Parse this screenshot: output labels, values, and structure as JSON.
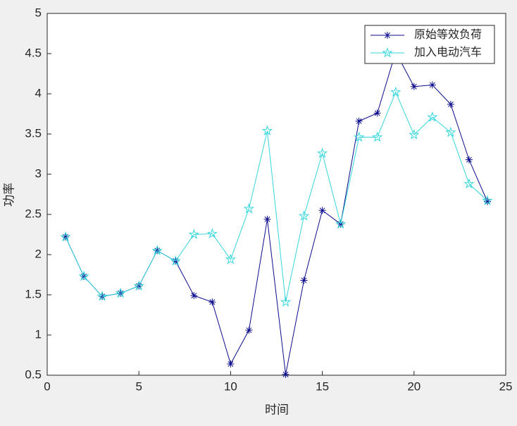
{
  "chart_data": {
    "type": "line",
    "xlabel": "时间",
    "ylabel": "功率",
    "x": [
      1,
      2,
      3,
      4,
      5,
      6,
      7,
      8,
      9,
      10,
      11,
      12,
      13,
      14,
      15,
      16,
      17,
      18,
      19,
      20,
      21,
      22,
      23,
      24
    ],
    "series": [
      {
        "name": "原始等效负荷",
        "color": "#0b0b8c",
        "marker": "asterisk",
        "values": [
          2.22,
          1.73,
          1.48,
          1.52,
          1.61,
          2.05,
          1.92,
          1.49,
          1.41,
          0.64,
          1.06,
          2.44,
          0.51,
          1.68,
          2.55,
          2.38,
          3.66,
          3.76,
          4.52,
          4.09,
          4.11,
          3.87,
          3.18,
          2.66
        ]
      },
      {
        "name": "加入电动汽车",
        "color": "#33d6dc",
        "marker": "pentagram",
        "values": [
          2.22,
          1.73,
          1.48,
          1.52,
          1.61,
          2.05,
          1.92,
          2.25,
          2.26,
          1.94,
          2.57,
          3.54,
          1.41,
          2.48,
          3.26,
          2.38,
          3.46,
          3.46,
          4.02,
          3.49,
          3.71,
          3.52,
          2.88,
          2.67
        ]
      }
    ],
    "xlim": [
      0,
      25
    ],
    "xticks": [
      0,
      5,
      10,
      15,
      20,
      25
    ],
    "ylim": [
      0.5,
      5
    ],
    "yticks": [
      0.5,
      1,
      1.5,
      2,
      2.5,
      3,
      3.5,
      4,
      4.5,
      5
    ],
    "legend": "northeast"
  }
}
